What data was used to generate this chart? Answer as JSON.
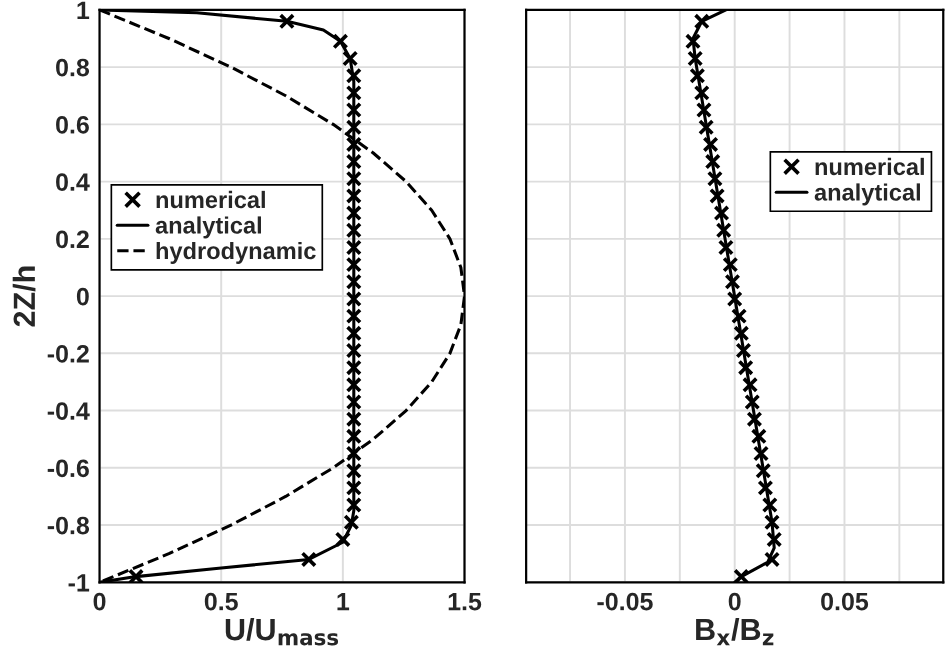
{
  "chart_data": [
    {
      "type": "line",
      "xlabel": "U/U$_{mass}$",
      "ylabel": "2Z/h",
      "xlim": [
        0,
        1.5
      ],
      "xticks": [
        0,
        0.5,
        1,
        1.5
      ],
      "ylim": [
        -1,
        1
      ],
      "yticks": [
        -1,
        -0.8,
        -0.6,
        -0.4,
        -0.2,
        0,
        0.2,
        0.4,
        0.6,
        0.8,
        1
      ],
      "grid": true,
      "legend": "center left",
      "series": [
        {
          "name": "numerical",
          "type": "scatter",
          "marker": "cross",
          "color": "#000000",
          "x": [
            0.77,
            0.99,
            1.03,
            1.045,
            1.045,
            1.045,
            1.045,
            1.045,
            1.045,
            1.045,
            1.045,
            1.045,
            1.045,
            1.045,
            1.045,
            1.045,
            1.045,
            1.045,
            1.045,
            1.045,
            1.045,
            1.045,
            1.045,
            1.045,
            1.045,
            1.045,
            1.045,
            1.045,
            1.045,
            1.035,
            1.0,
            0.86,
            0.15
          ],
          "values": [
            0.96,
            0.89,
            0.83,
            0.77,
            0.71,
            0.65,
            0.59,
            0.53,
            0.47,
            0.41,
            0.35,
            0.29,
            0.23,
            0.17,
            0.11,
            0.05,
            -0.01,
            -0.07,
            -0.13,
            -0.19,
            -0.25,
            -0.31,
            -0.37,
            -0.43,
            -0.49,
            -0.55,
            -0.61,
            -0.67,
            -0.73,
            -0.79,
            -0.85,
            -0.92,
            -0.98
          ]
        },
        {
          "name": "analytical",
          "line_style": "solid",
          "color": "#000000",
          "x": [
            0,
            0.4,
            0.77,
            0.92,
            0.99,
            1.03,
            1.045,
            1.045,
            1.035,
            1.0,
            0.86,
            0.5,
            0.15,
            0
          ],
          "values": [
            1,
            0.99,
            0.96,
            0.93,
            0.89,
            0.83,
            0.75,
            -0.75,
            -0.8,
            -0.86,
            -0.92,
            -0.95,
            -0.98,
            -1
          ]
        },
        {
          "name": "hydrodynamic",
          "line_style": "dashed",
          "color": "#000000",
          "x": [
            0,
            0.285,
            0.54,
            0.765,
            0.96,
            1.125,
            1.26,
            1.365,
            1.44,
            1.485,
            1.5,
            1.485,
            1.44,
            1.365,
            1.26,
            1.125,
            0.96,
            0.765,
            0.54,
            0.285,
            0
          ],
          "values": [
            1,
            0.9,
            0.8,
            0.7,
            0.6,
            0.5,
            0.4,
            0.3,
            0.2,
            0.1,
            0,
            -0.1,
            -0.2,
            -0.3,
            -0.4,
            -0.5,
            -0.6,
            -0.7,
            -0.8,
            -0.9,
            -1
          ]
        }
      ]
    },
    {
      "type": "line",
      "xlabel": "B$_{x}$/B$_{z}$",
      "xlim": [
        -0.095,
        0.095
      ],
      "xticks": [
        {
          "value": -0.075,
          "label": null
        },
        -0.05,
        {
          "value": -0.025,
          "label": null
        },
        0,
        {
          "value": 0.025,
          "label": null
        },
        0.05,
        {
          "value": 0.075,
          "label": null
        }
      ],
      "ylim": [
        -1,
        1
      ],
      "yticks": [
        -1,
        -0.8,
        -0.6,
        -0.4,
        -0.2,
        0,
        0.2,
        0.4,
        0.6,
        0.8,
        1
      ],
      "tick_labels": "x",
      "grid": true,
      "legend": "center right",
      "series": [
        {
          "name": "numerical",
          "type": "scatter",
          "marker": "cross",
          "color": "#000000",
          "x": [
            -0.015,
            -0.019,
            -0.018,
            -0.017,
            -0.015,
            -0.014,
            -0.013,
            -0.011,
            -0.01,
            -0.009,
            -0.008,
            -0.006,
            -0.005,
            -0.004,
            -0.002,
            -0.001,
            0.0,
            0.002,
            0.003,
            0.004,
            0.005,
            0.007,
            0.008,
            0.009,
            0.011,
            0.012,
            0.013,
            0.014,
            0.016,
            0.017,
            0.018,
            0.017,
            0.003
          ],
          "values": [
            0.96,
            0.89,
            0.83,
            0.77,
            0.71,
            0.65,
            0.59,
            0.53,
            0.47,
            0.41,
            0.35,
            0.29,
            0.23,
            0.17,
            0.11,
            0.05,
            -0.01,
            -0.07,
            -0.13,
            -0.19,
            -0.25,
            -0.31,
            -0.37,
            -0.43,
            -0.49,
            -0.55,
            -0.61,
            -0.67,
            -0.73,
            -0.79,
            -0.85,
            -0.92,
            -0.98
          ]
        },
        {
          "name": "analytical",
          "line_style": "solid",
          "color": "#000000",
          "x": [
            -0.004,
            -0.015,
            -0.019,
            -0.018,
            0.017,
            0.018,
            0.015,
            0.003,
            0.0
          ],
          "values": [
            1,
            0.96,
            0.9,
            0.83,
            -0.79,
            -0.88,
            -0.93,
            -0.98,
            -1
          ]
        }
      ]
    }
  ]
}
